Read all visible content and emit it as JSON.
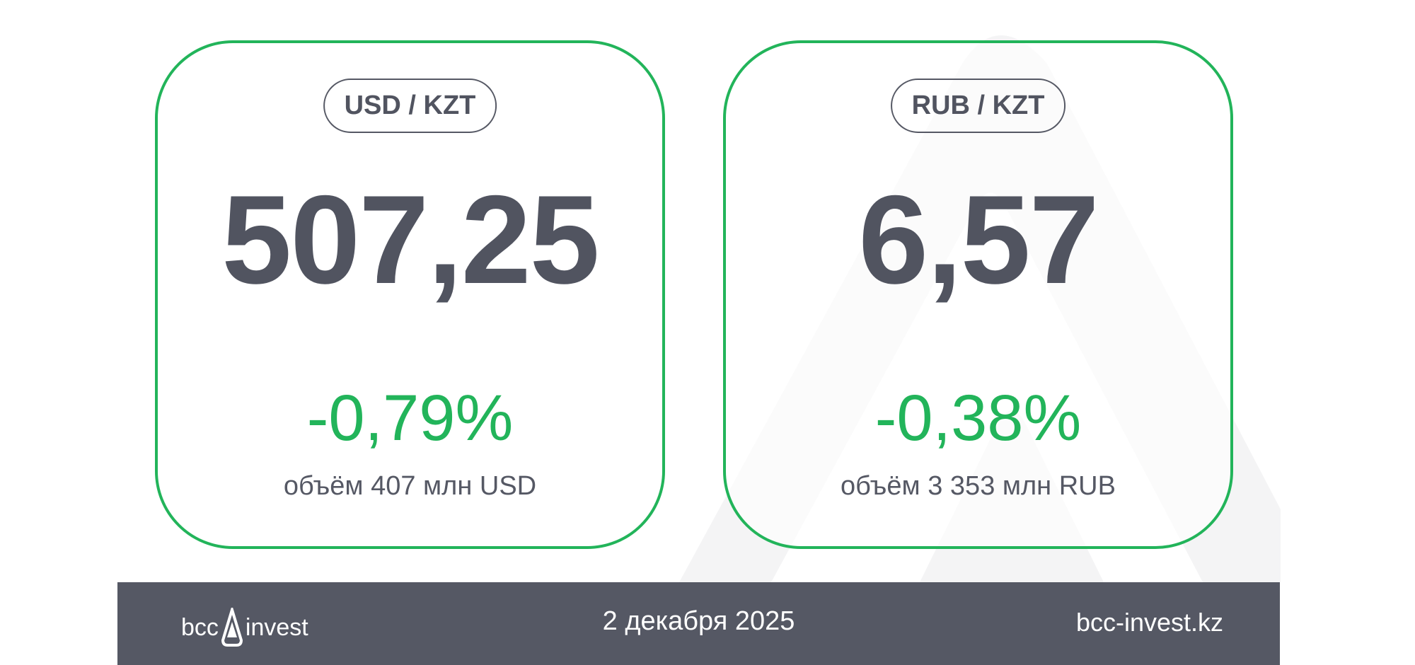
{
  "cards": [
    {
      "pair": "USD / KZT",
      "rate": "507,25",
      "change": "-0,79%",
      "volume": "объём 407 млн USD"
    },
    {
      "pair": "RUB / KZT",
      "rate": "6,57",
      "change": "-0,38%",
      "volume": "объём 3 353 млн RUB"
    }
  ],
  "footer": {
    "logo_left": "bcc",
    "logo_right": "invest",
    "date": "2 декабря 2025",
    "website": "bcc-invest.kz"
  },
  "colors": {
    "accent": "#22b45a",
    "dark": "#555864"
  }
}
